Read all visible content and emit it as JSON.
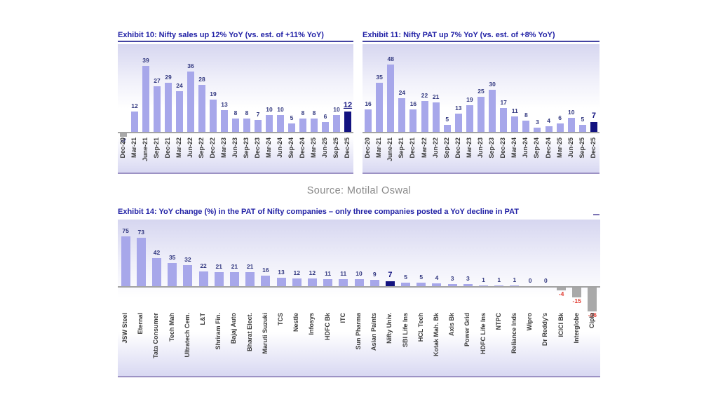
{
  "page": {
    "source_note": "Source: Motilal Oswal"
  },
  "palette": {
    "title_text": "#2222A6",
    "title_rule": "#4343A2",
    "chart_bottom_rule": "#9C92C4",
    "bar": "#A7A7EA",
    "bar_highlight": "#131380",
    "bar_negative_gray": "#A9A9A9",
    "value_label": "#31377F",
    "value_label_highlight": "#131380",
    "value_label_negative": "#E03C32",
    "axis_label": "#3B3B3B",
    "axis_line": "#A3A3A3",
    "source_text": "#8A8A8A"
  },
  "chart_data": [
    {
      "id": "exhibit-10",
      "type": "bar",
      "title": "Exhibit 10: Nifty sales up 12% YoY (vs. est. of +11% YoY)",
      "categories": [
        "Dec-20",
        "Mar-21",
        "June-21",
        "Sep-21",
        "Dec-21",
        "Mar-22",
        "Jun-22",
        "Sep-22",
        "Dec-22",
        "Mar-23",
        "Jun-23",
        "Sep-23",
        "Dec-23",
        "Mar-24",
        "Jun-24",
        "Sep-24",
        "Dec-24",
        "Mar-25",
        "Jun-25",
        "Sep-25",
        "Dec-25"
      ],
      "values": [
        -2,
        12,
        39,
        27,
        29,
        24,
        36,
        28,
        19,
        13,
        8,
        8,
        7,
        10,
        10,
        5,
        8,
        8,
        6,
        10,
        12
      ],
      "highlight_index": 20,
      "highlight_label_underline": true,
      "data_labels": true,
      "y_axis_visible": false,
      "grid": false,
      "legend": false,
      "ylim": [
        -6,
        44
      ]
    },
    {
      "id": "exhibit-11",
      "type": "bar",
      "title": "Exhibit 11: Nifty PAT up 7% YoY (vs. est. of +8% YoY)",
      "categories": [
        "Dec-20",
        "Mar-21",
        "June-21",
        "Sep-21",
        "Dec-21",
        "Mar-22",
        "Jun-22",
        "Sep-22",
        "Dec-22",
        "Mar-23",
        "Jun-23",
        "Sep-23",
        "Dec-23",
        "Mar-24",
        "Jun-24",
        "Sep-24",
        "Dec-24",
        "Mar-25",
        "Jun-25",
        "Sep-25",
        "Dec-25"
      ],
      "values": [
        16,
        35,
        48,
        24,
        16,
        22,
        21,
        5,
        13,
        19,
        25,
        30,
        17,
        11,
        8,
        3,
        4,
        6,
        10,
        5,
        7
      ],
      "highlight_index": 20,
      "highlight_label_underline": false,
      "data_labels": true,
      "y_axis_visible": false,
      "grid": false,
      "legend": false,
      "ylim": [
        0,
        56
      ]
    },
    {
      "id": "exhibit-14",
      "type": "bar",
      "title": "Exhibit 14: YoY change (%) in the PAT of Nifty companies – only three companies posted a YoY decline in PAT",
      "categories": [
        "JSW Steel",
        "Eternal",
        "Tata Consumer",
        "Tech Mah",
        "Ultratech Cem.",
        "L&T",
        "Shriram Fin.",
        "Bajaj Auto",
        "Bharat Elect.",
        "Maruti Suzuki",
        "TCS",
        "Nestle",
        "Infosys",
        "HDFC Bk",
        "ITC",
        "Sun Pharma",
        "Asian Paints",
        "Nifty Univ.",
        "SBI Life Ins",
        "HCL Tech",
        "Kotak Mah. Bk",
        "Axis Bk",
        "Power Grid",
        "HDFC Life Ins",
        "NTPC",
        "Reliance Inds",
        "Wipro",
        "Dr Reddy's",
        "ICICI Bk",
        "Interglobe",
        "Cipla"
      ],
      "values": [
        75,
        73,
        42,
        35,
        32,
        22,
        21,
        21,
        21,
        16,
        13,
        12,
        12,
        11,
        11,
        10,
        9,
        7,
        5,
        5,
        4,
        3,
        3,
        1,
        1,
        1,
        0,
        0,
        -4,
        -15,
        -36
      ],
      "highlight_index": 17,
      "highlight_label_underline": false,
      "negative_style": "gray_bar_red_label",
      "data_labels": true,
      "y_axis_visible": false,
      "grid": false,
      "legend": false,
      "ylim": [
        -40,
        85
      ]
    }
  ]
}
